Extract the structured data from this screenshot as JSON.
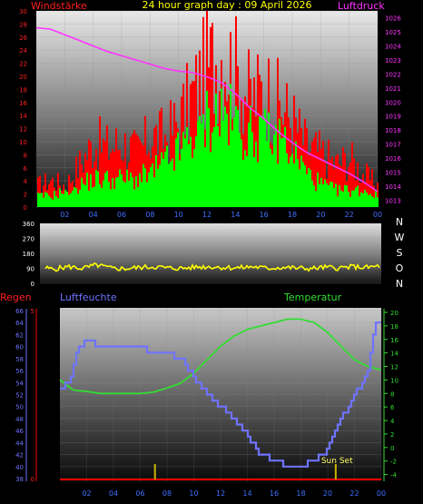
{
  "header": {
    "left_title": "Windstärke",
    "center_title": "24 hour graph day : 09 April 2026",
    "right_title": "Luftdruck"
  },
  "colors": {
    "background": "#000000",
    "wind_red": "#ff0000",
    "wind_green": "#00ff00",
    "pressure": "#ff33ff",
    "direction": "#ffff00",
    "humidity": "#6f73ff",
    "temperature": "#33dd33",
    "rain": "#ff0000",
    "sunset_marker": "#c8b400",
    "axis_text_x": "#3f6fff",
    "temp_axis": "#33dd33"
  },
  "chart_data": [
    {
      "type": "bar",
      "id": "wind-pressure",
      "left_axis": {
        "title": "Windstärke",
        "ylim": [
          0,
          30
        ],
        "ticks": [
          "0",
          "2",
          "4",
          "6",
          "8",
          "10",
          "12",
          "14",
          "16",
          "18",
          "20",
          "22",
          "24",
          "26",
          "28",
          "30"
        ]
      },
      "right_axis": {
        "title": "Luftdruck",
        "ylim": [
          1012.5,
          1026.5
        ],
        "ticks": [
          "1013",
          "1014",
          "1015",
          "1016",
          "1017",
          "1018",
          "1019",
          "1020",
          "1021",
          "1022",
          "1023",
          "1024",
          "1025",
          "1026"
        ]
      },
      "x_ticks": [
        "02",
        "04",
        "06",
        "08",
        "10",
        "12",
        "14",
        "16",
        "18",
        "20",
        "22",
        "00"
      ],
      "series": [
        {
          "id": "gust",
          "color": "#ff0000",
          "hours": [
            0,
            1,
            2,
            3,
            4,
            5,
            6,
            7,
            8,
            9,
            10,
            11,
            12,
            13,
            14,
            15,
            16,
            17,
            18,
            19,
            20,
            21,
            22,
            23,
            24
          ],
          "values": [
            4,
            5,
            4,
            8,
            12,
            11,
            12,
            10,
            13,
            13,
            16,
            21,
            26,
            29,
            25,
            20,
            22,
            19,
            16,
            11,
            10,
            8,
            9,
            6,
            4
          ]
        },
        {
          "id": "mean",
          "color": "#00ff00",
          "hours": [
            0,
            1,
            2,
            3,
            4,
            5,
            6,
            7,
            8,
            9,
            10,
            11,
            12,
            13,
            14,
            15,
            16,
            17,
            18,
            19,
            20,
            21,
            22,
            23,
            24
          ],
          "values": [
            2,
            2,
            3,
            4,
            5,
            5,
            5,
            5,
            6,
            8,
            10,
            13,
            16,
            17,
            15,
            13,
            14,
            13,
            10,
            6,
            4,
            3,
            3,
            3,
            2
          ]
        },
        {
          "id": "pressure",
          "axis": "right",
          "color": "#ff33ff",
          "hours": [
            0,
            1,
            2,
            3,
            4,
            5,
            6,
            7,
            8,
            9,
            10,
            11,
            12,
            13,
            14,
            15,
            16,
            17,
            18,
            19,
            20,
            21,
            22,
            23,
            24
          ],
          "values": [
            1025.3,
            1025.2,
            1024.8,
            1024.4,
            1024.0,
            1023.6,
            1023.3,
            1023.0,
            1022.7,
            1022.4,
            1022.2,
            1022.1,
            1021.8,
            1021.4,
            1020.6,
            1019.6,
            1018.8,
            1017.9,
            1017.1,
            1016.4,
            1015.9,
            1015.4,
            1014.9,
            1014.3,
            1013.6
          ]
        }
      ]
    },
    {
      "type": "line",
      "id": "wind-direction",
      "left_axis": {
        "ylim": [
          0,
          360
        ],
        "ticks": [
          "0",
          "90",
          "180",
          "270",
          "360"
        ]
      },
      "right_labels": [
        "N",
        "W",
        "S",
        "O",
        "N"
      ],
      "series": [
        {
          "id": "direction",
          "color": "#ffff00",
          "hours": [
            0,
            1,
            2,
            3,
            4,
            5,
            6,
            7,
            8,
            9,
            10,
            11,
            12,
            13,
            14,
            15,
            16,
            17,
            18,
            19,
            20,
            21,
            22,
            23,
            24
          ],
          "values": [
            95,
            85,
            100,
            90,
            110,
            90,
            88,
            95,
            100,
            92,
            90,
            98,
            100,
            95,
            93,
            100,
            90,
            96,
            92,
            88,
            96,
            92,
            100,
            95,
            105
          ]
        }
      ]
    },
    {
      "type": "line",
      "id": "humidity-temperature",
      "left_labels": {
        "title": "Regen",
        "ticks": [
          "0",
          "5"
        ]
      },
      "humidity_axis": {
        "title": "Luftfeuchte",
        "ylim": [
          38,
          66
        ],
        "ticks": [
          "38",
          "40",
          "42",
          "44",
          "46",
          "48",
          "50",
          "52",
          "54",
          "56",
          "58",
          "60",
          "62",
          "64",
          "66"
        ]
      },
      "temperature_axis": {
        "title": "Temperatur",
        "ylim": [
          -5,
          20
        ],
        "ticks": [
          "-4",
          "-2",
          "0",
          "2",
          "4",
          "6",
          "8",
          "10",
          "12",
          "14",
          "16",
          "18",
          "20"
        ]
      },
      "x_ticks": [
        "02",
        "04",
        "06",
        "08",
        "10",
        "12",
        "14",
        "16",
        "18",
        "20",
        "22",
        "00"
      ],
      "annotation": {
        "text": "Sun Set",
        "hour": 20.6
      },
      "series": [
        {
          "id": "humidity",
          "color": "#6f73ff",
          "hours": [
            0,
            0.7,
            1.3,
            2,
            3,
            4,
            5,
            6,
            7,
            8,
            9,
            10,
            11,
            12,
            13,
            14,
            15,
            16,
            17,
            17.5,
            18,
            19,
            20,
            21,
            22,
            23,
            23.5,
            24
          ],
          "values": [
            53,
            54,
            60,
            61,
            60,
            60,
            60,
            60,
            59,
            59,
            58,
            55,
            52,
            50,
            48,
            45,
            42,
            41,
            40,
            40.5,
            40,
            41,
            43,
            48,
            52,
            56,
            64,
            64
          ]
        },
        {
          "id": "temperature",
          "color": "#33dd33",
          "hours": [
            0,
            1,
            2,
            3,
            4,
            5,
            6,
            7,
            8,
            9,
            10,
            11,
            12,
            13,
            14,
            15,
            16,
            17,
            18,
            19,
            20,
            21,
            22,
            23,
            24
          ],
          "values": [
            10,
            8.5,
            8.3,
            8,
            8,
            8,
            8,
            8.2,
            8.8,
            9.5,
            11,
            13,
            15,
            16.5,
            17.5,
            18,
            18.5,
            19,
            19,
            18.5,
            17,
            15,
            13,
            12,
            11.5
          ]
        }
      ],
      "markers": [
        {
          "id": "event-1",
          "hour": 7.1
        },
        {
          "id": "event-2",
          "hour": 20.6
        }
      ]
    }
  ]
}
